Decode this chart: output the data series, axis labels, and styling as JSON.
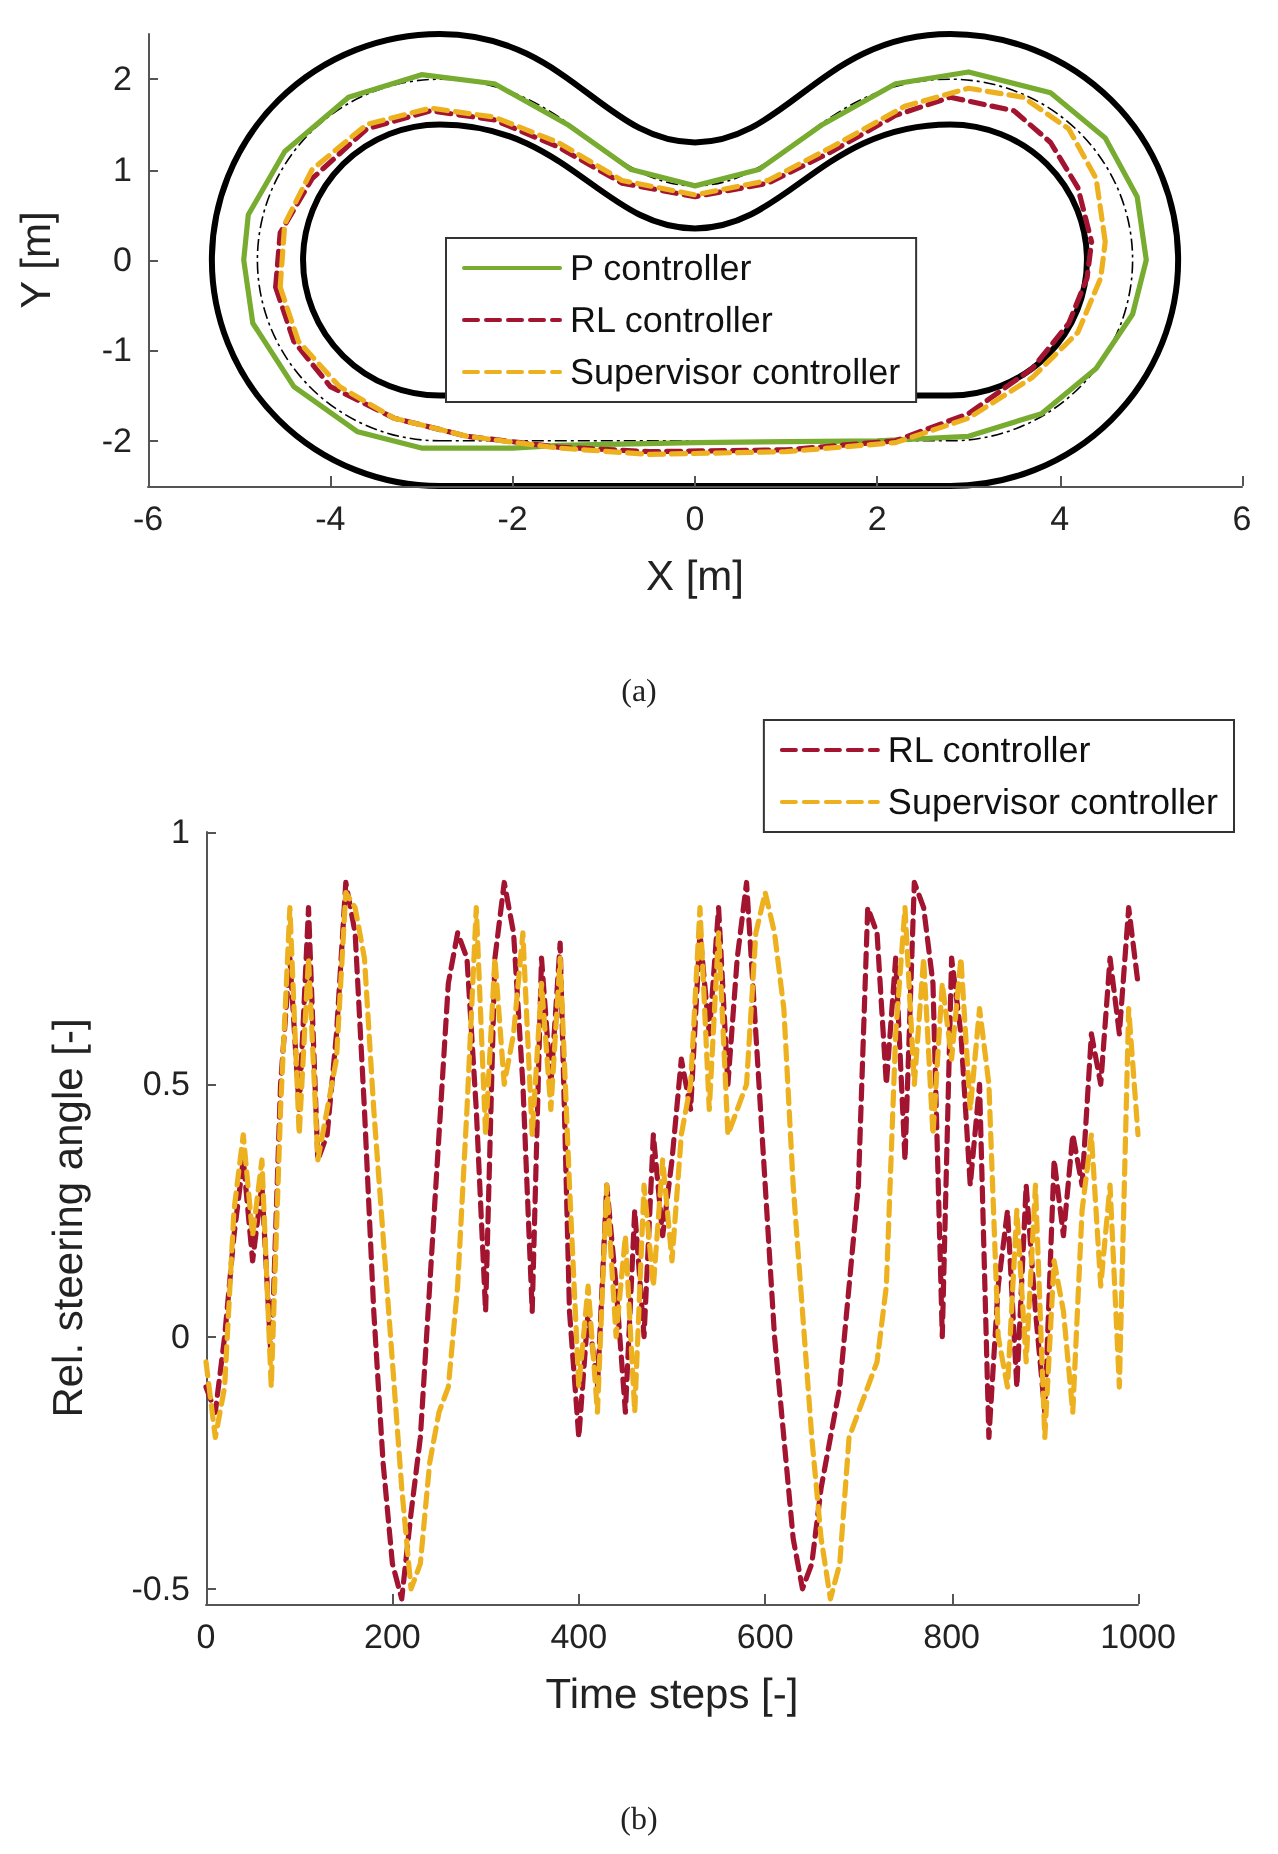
{
  "chart_data": [
    {
      "type": "line",
      "xlabel": "X [m]",
      "ylabel": "Y [m]",
      "xlim": [
        -6,
        6
      ],
      "ylim": [
        -2.5,
        2.5
      ],
      "xticks": [
        -6,
        -4,
        -2,
        0,
        2,
        4,
        6
      ],
      "yticks": [
        -2,
        -1,
        0,
        1,
        2
      ],
      "grid": false,
      "legend": "center",
      "annotations": [
        "(a)"
      ],
      "series": [
        {
          "name": "P controller",
          "color": "#77ac30",
          "line_style": "solid",
          "x": [
            -4.95,
            -4.9,
            -4.5,
            -3.8,
            -3,
            -2.2,
            -1.4,
            -0.7,
            0,
            0.7,
            1.4,
            2.2,
            3,
            3.9,
            4.5,
            4.85,
            4.95,
            null,
            -4.95,
            -4.85,
            -4.4,
            -3.7,
            -3,
            -2,
            -1.5,
            0,
            2,
            3,
            3.8,
            4.4,
            4.8,
            4.95
          ],
          "values": [
            0,
            0.5,
            1.2,
            1.8,
            2.05,
            1.95,
            1.5,
            1.0,
            0.82,
            1.0,
            1.5,
            1.95,
            2.08,
            1.85,
            1.35,
            0.7,
            0,
            null,
            0,
            -0.7,
            -1.4,
            -1.9,
            -2.08,
            -2.08,
            -2.05,
            -2.02,
            -2.0,
            -1.95,
            -1.7,
            -1.2,
            -0.6,
            0
          ]
        },
        {
          "name": "RL controller",
          "color": "#a2142f",
          "line_style": "dashed",
          "x": [
            -4.6,
            -4.55,
            -4.2,
            -3.6,
            -2.9,
            -2.2,
            -1.5,
            -0.8,
            0,
            0.8,
            1.5,
            2.2,
            2.8,
            3.5,
            3.9,
            4.2,
            4.35,
            null,
            -4.6,
            -4.4,
            -4,
            -3.3,
            -2.5,
            -1.5,
            -0.5,
            1,
            2.2,
            3,
            3.7,
            4.1,
            4.3,
            4.35
          ],
          "values": [
            -0.3,
            0.3,
            0.9,
            1.45,
            1.65,
            1.55,
            1.25,
            0.85,
            0.7,
            0.85,
            1.2,
            1.6,
            1.8,
            1.65,
            1.3,
            0.8,
            0.2,
            null,
            -0.3,
            -0.9,
            -1.4,
            -1.75,
            -1.95,
            -2.07,
            -2.12,
            -2.1,
            -2.0,
            -1.7,
            -1.2,
            -0.7,
            -0.2,
            0.2
          ]
        },
        {
          "name": "Supervisor controller",
          "color": "#edb120",
          "line_style": "dashed",
          "x": [
            -4.55,
            -4.5,
            -4.2,
            -3.6,
            -2.9,
            -2.2,
            -1.5,
            -0.8,
            0,
            0.8,
            1.5,
            2.3,
            3,
            3.6,
            4.1,
            4.4,
            4.5,
            null,
            -4.55,
            -4.35,
            -3.9,
            -3.3,
            -2.5,
            -1.5,
            -0.5,
            1,
            2.2,
            3,
            3.7,
            4.2,
            4.45,
            4.5
          ],
          "values": [
            -0.3,
            0.4,
            1.0,
            1.5,
            1.68,
            1.58,
            1.3,
            0.88,
            0.72,
            0.88,
            1.25,
            1.7,
            1.9,
            1.8,
            1.45,
            0.9,
            0.2,
            null,
            -0.3,
            -0.9,
            -1.4,
            -1.75,
            -1.95,
            -2.08,
            -2.15,
            -2.12,
            -2.02,
            -1.75,
            -1.3,
            -0.8,
            -0.2,
            0.2
          ]
        }
      ]
    },
    {
      "type": "line",
      "xlabel": "Time steps [-]",
      "ylabel": "Rel. steering angle [-]",
      "xlim": [
        0,
        1000
      ],
      "ylim": [
        -0.53,
        1
      ],
      "xticks": [
        0,
        200,
        400,
        600,
        800,
        1000
      ],
      "yticks": [
        -0.5,
        0,
        0.5,
        1
      ],
      "grid": false,
      "legend": "top right",
      "annotations": [
        "(b)"
      ],
      "x": [
        0,
        10,
        20,
        30,
        40,
        50,
        60,
        70,
        80,
        90,
        100,
        110,
        120,
        130,
        140,
        150,
        160,
        170,
        180,
        190,
        200,
        210,
        220,
        230,
        240,
        250,
        260,
        270,
        280,
        290,
        300,
        310,
        320,
        330,
        340,
        350,
        360,
        370,
        380,
        390,
        400,
        410,
        420,
        430,
        440,
        450,
        460,
        470,
        480,
        490,
        500,
        510,
        520,
        530,
        540,
        550,
        560,
        570,
        580,
        590,
        600,
        610,
        620,
        630,
        640,
        650,
        660,
        670,
        680,
        690,
        700,
        710,
        720,
        730,
        740,
        750,
        760,
        770,
        780,
        790,
        800,
        810,
        820,
        830,
        840,
        850,
        860,
        870,
        880,
        890,
        900,
        910,
        920,
        930,
        940,
        950,
        960,
        970,
        980,
        990,
        1000
      ],
      "series": [
        {
          "name": "RL controller",
          "color": "#a2142f",
          "line_style": "dashed",
          "values": [
            -0.1,
            -0.15,
            0.0,
            0.2,
            0.35,
            0.15,
            0.3,
            -0.05,
            0.5,
            0.75,
            0.45,
            0.85,
            0.35,
            0.4,
            0.6,
            0.9,
            0.8,
            0.45,
            0.05,
            -0.25,
            -0.45,
            -0.52,
            -0.35,
            -0.2,
            0.1,
            0.4,
            0.7,
            0.8,
            0.75,
            0.45,
            0.05,
            0.75,
            0.9,
            0.8,
            0.5,
            0.05,
            0.75,
            0.5,
            0.78,
            0.05,
            -0.2,
            0.05,
            -0.1,
            0.3,
            0.1,
            -0.15,
            0.25,
            0.0,
            0.4,
            0.2,
            0.35,
            0.55,
            0.45,
            0.8,
            0.6,
            0.85,
            0.5,
            0.75,
            0.9,
            0.6,
            0.3,
            0.0,
            -0.2,
            -0.4,
            -0.5,
            -0.45,
            -0.3,
            -0.2,
            -0.1,
            0.1,
            0.3,
            0.85,
            0.8,
            0.5,
            0.75,
            0.35,
            0.9,
            0.85,
            0.7,
            0.0,
            0.75,
            0.6,
            0.3,
            0.5,
            -0.2,
            0.1,
            0.25,
            -0.1,
            0.3,
            0.05,
            -0.15,
            0.35,
            0.2,
            0.4,
            0.3,
            0.6,
            0.5,
            0.75,
            0.6,
            0.85,
            0.7
          ]
        },
        {
          "name": "Supervisor controller",
          "color": "#edb120",
          "line_style": "dashed",
          "values": [
            -0.05,
            -0.2,
            -0.1,
            0.25,
            0.4,
            0.2,
            0.35,
            -0.1,
            0.45,
            0.85,
            0.4,
            0.75,
            0.35,
            0.45,
            0.55,
            0.88,
            0.85,
            0.75,
            0.45,
            0.2,
            -0.05,
            -0.3,
            -0.5,
            -0.45,
            -0.25,
            -0.15,
            -0.1,
            0.1,
            0.45,
            0.85,
            0.4,
            0.75,
            0.5,
            0.6,
            0.8,
            0.4,
            0.7,
            0.45,
            0.75,
            0.3,
            -0.1,
            0.1,
            -0.15,
            0.3,
            0.0,
            0.2,
            -0.15,
            0.3,
            0.1,
            0.35,
            0.15,
            0.4,
            0.5,
            0.85,
            0.45,
            0.8,
            0.4,
            0.45,
            0.5,
            0.8,
            0.88,
            0.8,
            0.65,
            0.3,
            0.05,
            -0.2,
            -0.4,
            -0.52,
            -0.45,
            -0.2,
            -0.15,
            -0.1,
            -0.05,
            0.1,
            0.6,
            0.85,
            0.5,
            0.75,
            0.4,
            0.7,
            0.55,
            0.75,
            0.45,
            0.65,
            0.5,
            0.0,
            -0.1,
            0.25,
            -0.05,
            0.3,
            -0.2,
            0.15,
            0.05,
            -0.15,
            0.25,
            0.4,
            0.1,
            0.3,
            -0.1,
            0.65,
            0.4
          ]
        }
      ]
    }
  ]
}
